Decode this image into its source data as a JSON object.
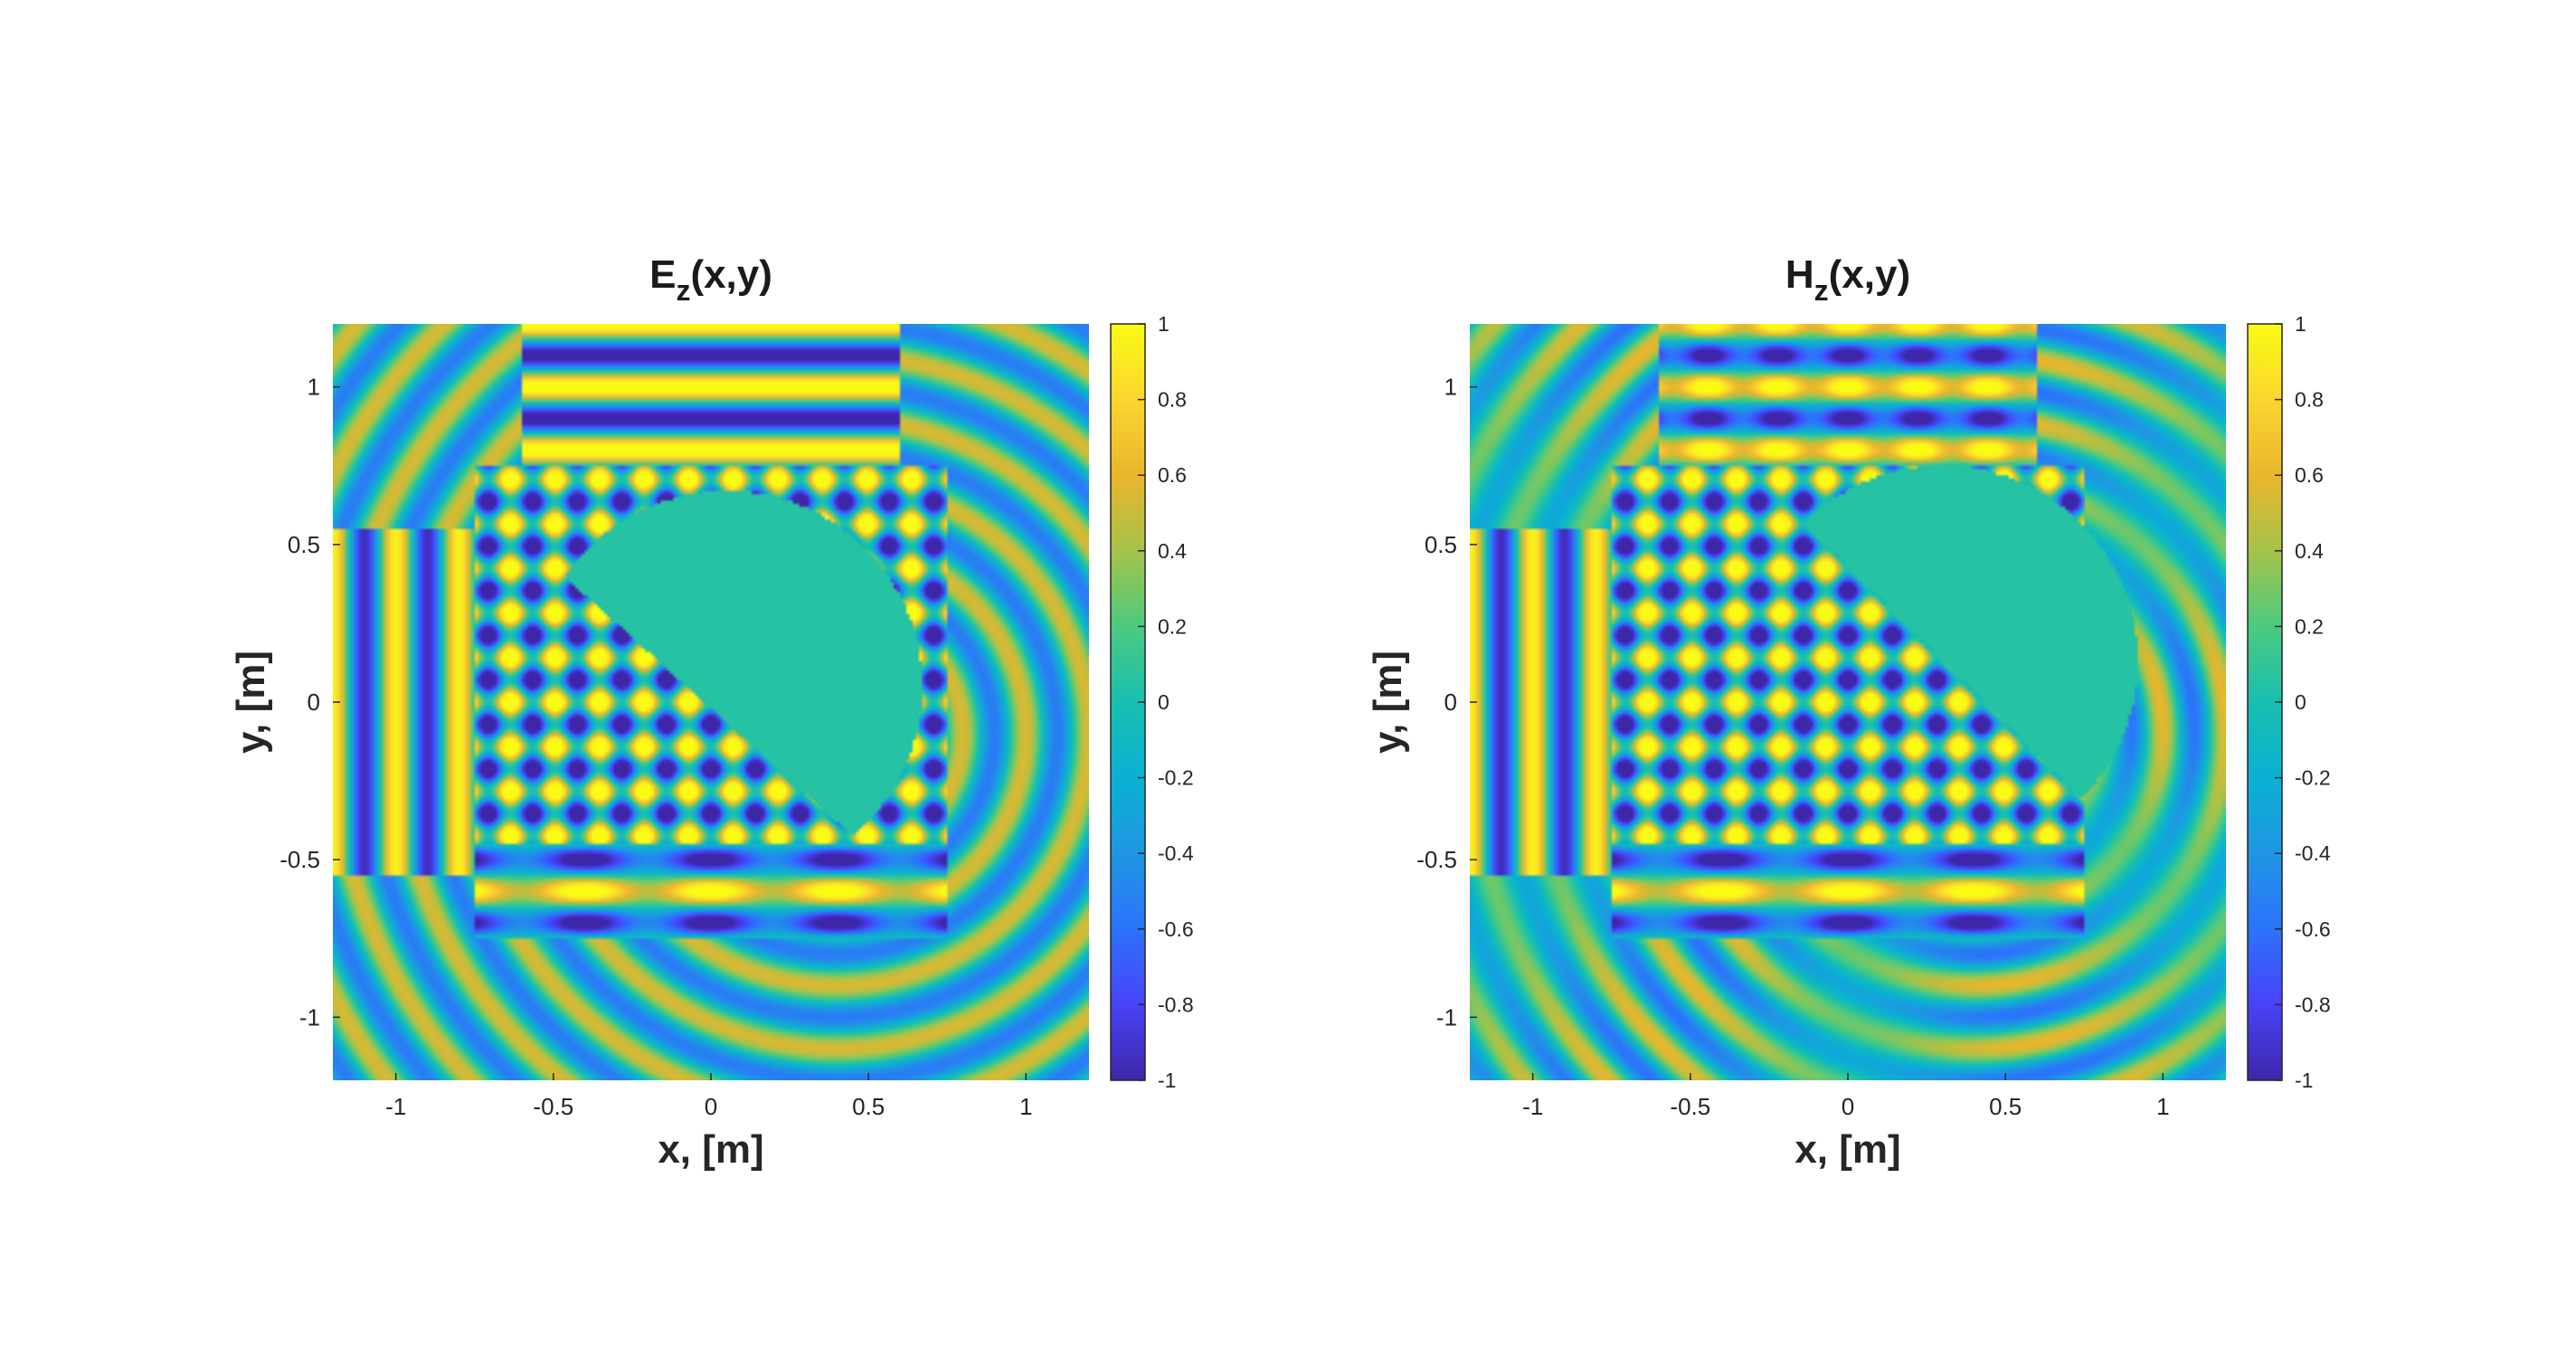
{
  "figure": {
    "background": "#ffffff"
  },
  "chart_data": [
    {
      "type": "heatmap",
      "title_base": "E",
      "title_sub": "z",
      "title_rest": "(x,y)",
      "xlabel": "x, [m]",
      "ylabel": "y, [m]",
      "xlim": [
        -1.2,
        1.2
      ],
      "ylim": [
        -1.2,
        1.2
      ],
      "xticks": [
        -1,
        -0.5,
        0,
        0.5,
        1
      ],
      "xtick_labels": [
        "-1",
        "-0.5",
        "0",
        "0.5",
        "1"
      ],
      "yticks": [
        -1,
        -0.5,
        0,
        0.5,
        1
      ],
      "ytick_labels": [
        "-1",
        "-0.5",
        "0",
        "0.5",
        "1"
      ],
      "grid": false,
      "colormap": "parula",
      "clim": [
        -1,
        1
      ],
      "colorbar_ticks": [
        -1,
        -0.8,
        -0.6,
        -0.4,
        -0.2,
        0,
        0.2,
        0.4,
        0.6,
        0.8,
        1
      ],
      "colorbar_tick_labels": [
        "-1",
        "-0.8",
        "-0.6",
        "-0.4",
        "-0.2",
        "0",
        "0.2",
        "0.4",
        "0.6",
        "0.8",
        "1"
      ],
      "scatterer": "rotated triangle/sector inside square region [-0.75,0.75]"
    },
    {
      "type": "heatmap",
      "title_base": "H",
      "title_sub": "z",
      "title_rest": "(x,y)",
      "xlabel": "x, [m]",
      "ylabel": "y, [m]",
      "xlim": [
        -1.2,
        1.2
      ],
      "ylim": [
        -1.2,
        1.2
      ],
      "xticks": [
        -1,
        -0.5,
        0,
        0.5,
        1
      ],
      "xtick_labels": [
        "-1",
        "-0.5",
        "0",
        "0.5",
        "1"
      ],
      "yticks": [
        -1,
        -0.5,
        0,
        0.5,
        1
      ],
      "ytick_labels": [
        "-1",
        "-0.5",
        "0",
        "0.5",
        "1"
      ],
      "grid": false,
      "colormap": "parula",
      "clim": [
        -1,
        1
      ],
      "colorbar_ticks": [
        -1,
        -0.8,
        -0.6,
        -0.4,
        -0.2,
        0,
        0.2,
        0.4,
        0.6,
        0.8,
        1
      ],
      "colorbar_tick_labels": [
        "-1",
        "-0.8",
        "-0.6",
        "-0.4",
        "-0.2",
        "0",
        "0.2",
        "0.4",
        "0.6",
        "0.8",
        "1"
      ],
      "scatterer": "semicircular sector inside square region [-0.75,0.75]"
    }
  ]
}
